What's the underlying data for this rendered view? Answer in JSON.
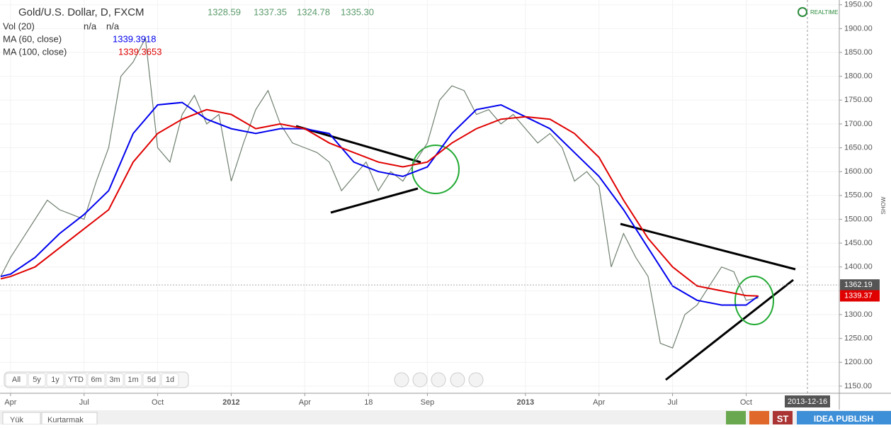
{
  "chart_data": {
    "type": "line",
    "title": "Gold/U.S. Dollar, D, FXCM",
    "ohlc": [
      "1328.59",
      "1337.35",
      "1324.78",
      "1335.30"
    ],
    "volume": {
      "name": "Vol (20)",
      "values": [
        "n/a",
        "n/a"
      ]
    },
    "xlim": [
      2.57,
      36.8
    ],
    "ylim": [
      1135,
      1960
    ],
    "xticks": [
      {
        "value": 3,
        "label": "Apr"
      },
      {
        "value": 6,
        "label": "Jul"
      },
      {
        "value": 9,
        "label": "Oct"
      },
      {
        "value": 12,
        "label": "2012"
      },
      {
        "value": 15,
        "label": "Apr"
      },
      {
        "value": 17.6,
        "label": "18"
      },
      {
        "value": 20,
        "label": "Sep"
      },
      {
        "value": 24,
        "label": "2013"
      },
      {
        "value": 27,
        "label": "Apr"
      },
      {
        "value": 30,
        "label": "Jul"
      },
      {
        "value": 33,
        "label": "Oct"
      }
    ],
    "yticks": [
      {
        "value": 1150,
        "label": "1150.00"
      },
      {
        "value": 1200,
        "label": "1200.00"
      },
      {
        "value": 1250,
        "label": "1250.00"
      },
      {
        "value": 1300,
        "label": "1300.00"
      },
      {
        "value": 1350,
        "label": "1350.00"
      },
      {
        "value": 1400,
        "label": "1400.00"
      },
      {
        "value": 1450,
        "label": "1450.00"
      },
      {
        "value": 1500,
        "label": "1500.00"
      },
      {
        "value": 1550,
        "label": "1550.00"
      },
      {
        "value": 1600,
        "label": "1600.00"
      },
      {
        "value": 1650,
        "label": "1650.00"
      },
      {
        "value": 1700,
        "label": "1700.00"
      },
      {
        "value": 1750,
        "label": "1750.00"
      },
      {
        "value": 1800,
        "label": "1800.00"
      },
      {
        "value": 1850,
        "label": "1850.00"
      },
      {
        "value": 1900,
        "label": "1900.00"
      },
      {
        "value": 1950,
        "label": "1950.00"
      }
    ],
    "series": [
      {
        "color": "#6f7f6f",
        "x": [
          2.6,
          3,
          3.5,
          4,
          4.5,
          5,
          5.5,
          6,
          6.5,
          7,
          7.5,
          8,
          8.5,
          9,
          9.5,
          10,
          10.5,
          11,
          11.5,
          12,
          12.5,
          13,
          13.5,
          14,
          14.5,
          15,
          15.5,
          16,
          16.5,
          17,
          17.5,
          18,
          18.5,
          19,
          19.5,
          20,
          20.5,
          21,
          21.5,
          22,
          22.5,
          23,
          23.5,
          24,
          24.5,
          25,
          25.5,
          26,
          26.5,
          27,
          27.5,
          28,
          28.5,
          29,
          29.5,
          30,
          30.5,
          31,
          31.5,
          32,
          32.5,
          33,
          33.5
        ],
        "values": [
          1380,
          1420,
          1460,
          1500,
          1540,
          1520,
          1510,
          1500,
          1580,
          1650,
          1800,
          1830,
          1880,
          1650,
          1620,
          1720,
          1760,
          1700,
          1720,
          1580,
          1660,
          1730,
          1770,
          1700,
          1660,
          1650,
          1640,
          1620,
          1560,
          1590,
          1620,
          1560,
          1600,
          1580,
          1620,
          1660,
          1750,
          1780,
          1770,
          1720,
          1730,
          1700,
          1720,
          1690,
          1660,
          1680,
          1650,
          1580,
          1600,
          1570,
          1400,
          1470,
          1420,
          1380,
          1240,
          1230,
          1300,
          1320,
          1360,
          1400,
          1390,
          1330,
          1335
        ]
      },
      {
        "name": "MA (60, close)",
        "color": "#0000ee",
        "current": "1339.3918",
        "x": [
          2.6,
          3,
          4,
          5,
          6,
          7,
          8,
          9,
          10,
          11,
          12,
          13,
          14,
          15,
          16,
          17,
          18,
          19,
          20,
          21,
          22,
          23,
          24,
          25,
          26,
          27,
          28,
          29,
          30,
          31,
          32,
          33,
          33.5
        ],
        "values": [
          1380,
          1385,
          1420,
          1470,
          1510,
          1560,
          1680,
          1740,
          1745,
          1710,
          1690,
          1680,
          1690,
          1690,
          1680,
          1620,
          1600,
          1590,
          1610,
          1680,
          1730,
          1740,
          1715,
          1690,
          1640,
          1590,
          1520,
          1440,
          1360,
          1330,
          1320,
          1320,
          1339
        ]
      },
      {
        "name": "MA (100, close)",
        "color": "#e00000",
        "current": "1339.3653",
        "x": [
          2.6,
          3,
          4,
          5,
          6,
          7,
          8,
          9,
          10,
          11,
          12,
          13,
          14,
          15,
          16,
          17,
          18,
          19,
          20,
          21,
          22,
          23,
          24,
          25,
          26,
          27,
          28,
          29,
          30,
          31,
          32,
          33,
          33.5
        ],
        "values": [
          1375,
          1380,
          1400,
          1440,
          1480,
          1520,
          1620,
          1680,
          1710,
          1730,
          1720,
          1690,
          1700,
          1690,
          1660,
          1640,
          1620,
          1610,
          1620,
          1660,
          1690,
          1710,
          1715,
          1710,
          1680,
          1630,
          1540,
          1460,
          1400,
          1360,
          1350,
          1340,
          1339
        ]
      }
    ],
    "price_tags": [
      {
        "value": 1362.19,
        "color": "#555555"
      },
      {
        "value": 1339.37,
        "color": "#e00000"
      }
    ],
    "date_marker": {
      "value": 35.5,
      "label": "2013-12-16"
    }
  },
  "ui": {
    "realtime": "REALTIME",
    "show": "SHOW",
    "ranges": [
      "All",
      "5y",
      "1y",
      "YTD",
      "6m",
      "3m",
      "1m",
      "5d",
      "1d"
    ],
    "tabs": [
      "Yük",
      "Kurtarmak"
    ],
    "publish": "IDEA PUBLISH",
    "st": "ST"
  }
}
